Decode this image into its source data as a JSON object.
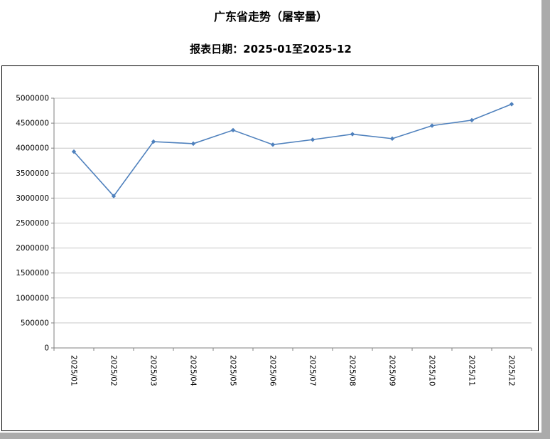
{
  "header": {
    "title": "广东省走势（屠宰量）",
    "subtitle": "报表日期：2025-01至2025-12"
  },
  "chart_data": {
    "type": "line",
    "title": "广东省走势（屠宰量）",
    "subtitle": "报表日期：2025-01至2025-12",
    "categories": [
      "2025/01",
      "2025/02",
      "2025/03",
      "2025/04",
      "2025/05",
      "2025/06",
      "2025/07",
      "2025/08",
      "2025/09",
      "2025/10",
      "2025/11",
      "2025/12"
    ],
    "series": [
      {
        "name": "屠宰量",
        "values": [
          3930000,
          3040000,
          4130000,
          4090000,
          4360000,
          4070000,
          4170000,
          4280000,
          4190000,
          4450000,
          4560000,
          4880000
        ]
      }
    ],
    "ylim": [
      0,
      5000000
    ],
    "ytick_step": 500000,
    "grid": true,
    "legend_position": "none",
    "line_color": "#4f81bd",
    "grid_color": "#c6c6c6",
    "axis_color": "#808080",
    "marker": "diamond"
  }
}
